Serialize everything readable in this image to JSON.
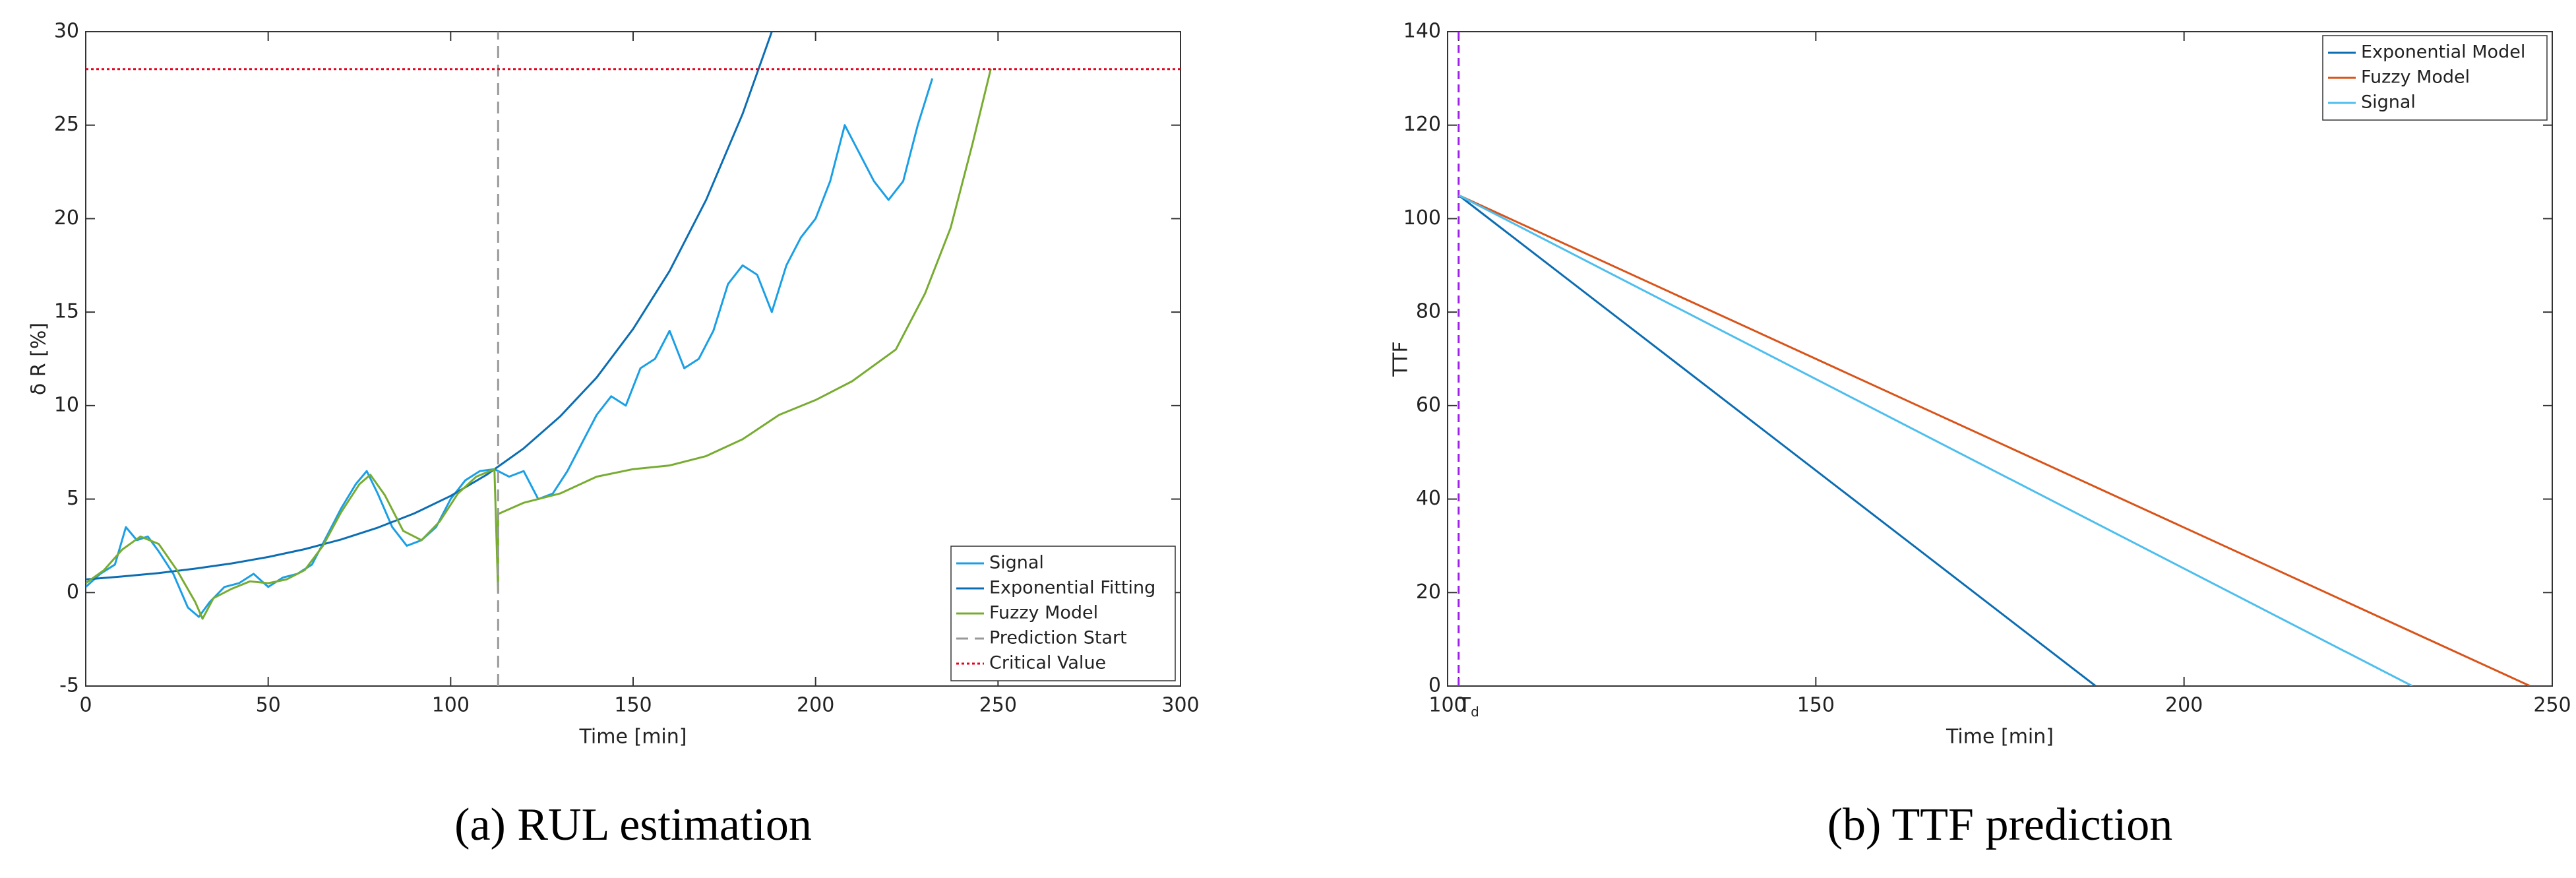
{
  "chart_data": [
    {
      "type": "line",
      "xlabel": "Time [min]",
      "ylabel": "δ R [%]",
      "caption": "(a) RUL estimation",
      "xlim": [
        0,
        300
      ],
      "xticks": [
        0,
        50,
        100,
        150,
        200,
        250,
        300
      ],
      "ylim": [
        -5,
        30
      ],
      "yticks": [
        -5,
        0,
        5,
        10,
        15,
        20,
        25,
        30
      ],
      "legend": "lower right",
      "series": [
        {
          "name": "Signal",
          "color": "#1a9fe6",
          "dash": "solid",
          "x": [
            0,
            4,
            8,
            11,
            14,
            17,
            20,
            24,
            28,
            31,
            34,
            38,
            42,
            46,
            50,
            54,
            58,
            62,
            66,
            70,
            74,
            77,
            80,
            84,
            88,
            92,
            96,
            100,
            104,
            108,
            112,
            116,
            120,
            124,
            128,
            132,
            136,
            140,
            144,
            148,
            152,
            156,
            160,
            164,
            168,
            172,
            176,
            180,
            184,
            188,
            192,
            196,
            200,
            204,
            208,
            212,
            216,
            220,
            224,
            228,
            232
          ],
          "values": [
            0.3,
            1.0,
            1.5,
            3.5,
            2.8,
            3.0,
            2.2,
            1.0,
            -0.8,
            -1.3,
            -0.5,
            0.3,
            0.5,
            1.0,
            0.3,
            0.8,
            1.0,
            1.5,
            3.0,
            4.5,
            5.8,
            6.5,
            5.3,
            3.5,
            2.5,
            2.8,
            3.5,
            5.0,
            6.0,
            6.5,
            6.6,
            6.2,
            6.5,
            5.0,
            5.3,
            6.5,
            8.0,
            9.5,
            10.5,
            10.0,
            12.0,
            12.5,
            14.0,
            12.0,
            12.5,
            14.0,
            16.5,
            17.5,
            17.0,
            15.0,
            17.5,
            19.0,
            20.0,
            22.0,
            25.0,
            23.5,
            22.0,
            21.0,
            22.0,
            25.0,
            27.5
          ]
        },
        {
          "name": "Exponential Fitting",
          "color": "#0b6db3",
          "dash": "solid",
          "x": [
            0,
            10,
            20,
            30,
            40,
            50,
            60,
            70,
            80,
            90,
            100,
            110,
            120,
            130,
            140,
            150,
            160,
            170,
            180,
            188
          ],
          "values": [
            0.7,
            0.86,
            1.04,
            1.28,
            1.56,
            1.9,
            2.32,
            2.84,
            3.47,
            4.23,
            5.17,
            6.32,
            7.71,
            9.42,
            11.5,
            14.1,
            17.2,
            21.0,
            25.6,
            30.0
          ]
        },
        {
          "name": "Fuzzy Model",
          "color": "#77ac30",
          "dash": "solid",
          "x": [
            0,
            5,
            10,
            15,
            20,
            25,
            30,
            32,
            35,
            40,
            45,
            50,
            55,
            60,
            65,
            70,
            75,
            78,
            82,
            87,
            92,
            97,
            102,
            107,
            112,
            113,
            113,
            120,
            130,
            140,
            150,
            160,
            170,
            180,
            190,
            200,
            210,
            222,
            230,
            237,
            243,
            248
          ],
          "values": [
            0.5,
            1.2,
            2.3,
            3.0,
            2.6,
            1.2,
            -0.5,
            -1.4,
            -0.3,
            0.2,
            0.6,
            0.5,
            0.7,
            1.2,
            2.5,
            4.3,
            5.8,
            6.3,
            5.2,
            3.3,
            2.8,
            3.8,
            5.3,
            6.2,
            6.6,
            0,
            4.2,
            4.8,
            5.3,
            6.2,
            6.6,
            6.8,
            7.3,
            8.2,
            9.5,
            10.3,
            11.3,
            13.0,
            16.0,
            19.5,
            24.0,
            28.0
          ]
        },
        {
          "name": "Prediction Start",
          "color": "#999999",
          "dash": "dashed",
          "x": [
            113,
            113
          ],
          "values": [
            -5,
            30
          ]
        },
        {
          "name": "Critical Value",
          "color": "#e8001c",
          "dash": "dotted",
          "x": [
            0,
            300
          ],
          "values": [
            28,
            28
          ]
        }
      ]
    },
    {
      "type": "line",
      "xlabel": "Time [min]",
      "ylabel": "TTF",
      "caption": "(b) TTF prediction",
      "xlim": [
        100,
        250
      ],
      "xticks": [
        100,
        {
          "value": 101.5,
          "label": "Td"
        },
        150,
        200,
        250
      ],
      "ylim": [
        0,
        140
      ],
      "yticks": [
        0,
        20,
        40,
        60,
        80,
        100,
        120,
        140
      ],
      "legend": "upper right",
      "vline": {
        "x": 101.5,
        "color": "#a020f0"
      },
      "series": [
        {
          "name": "Exponential Model",
          "color": "#0b6db3",
          "dash": "solid",
          "x": [
            101.5,
            188
          ],
          "values": [
            105,
            0
          ]
        },
        {
          "name": "Fuzzy Model",
          "color": "#d95319",
          "dash": "solid",
          "x": [
            101.5,
            247
          ],
          "values": [
            105,
            0
          ]
        },
        {
          "name": "Signal",
          "color": "#4dbeee",
          "dash": "solid",
          "x": [
            101.5,
            231
          ],
          "values": [
            105,
            0
          ]
        }
      ]
    }
  ]
}
